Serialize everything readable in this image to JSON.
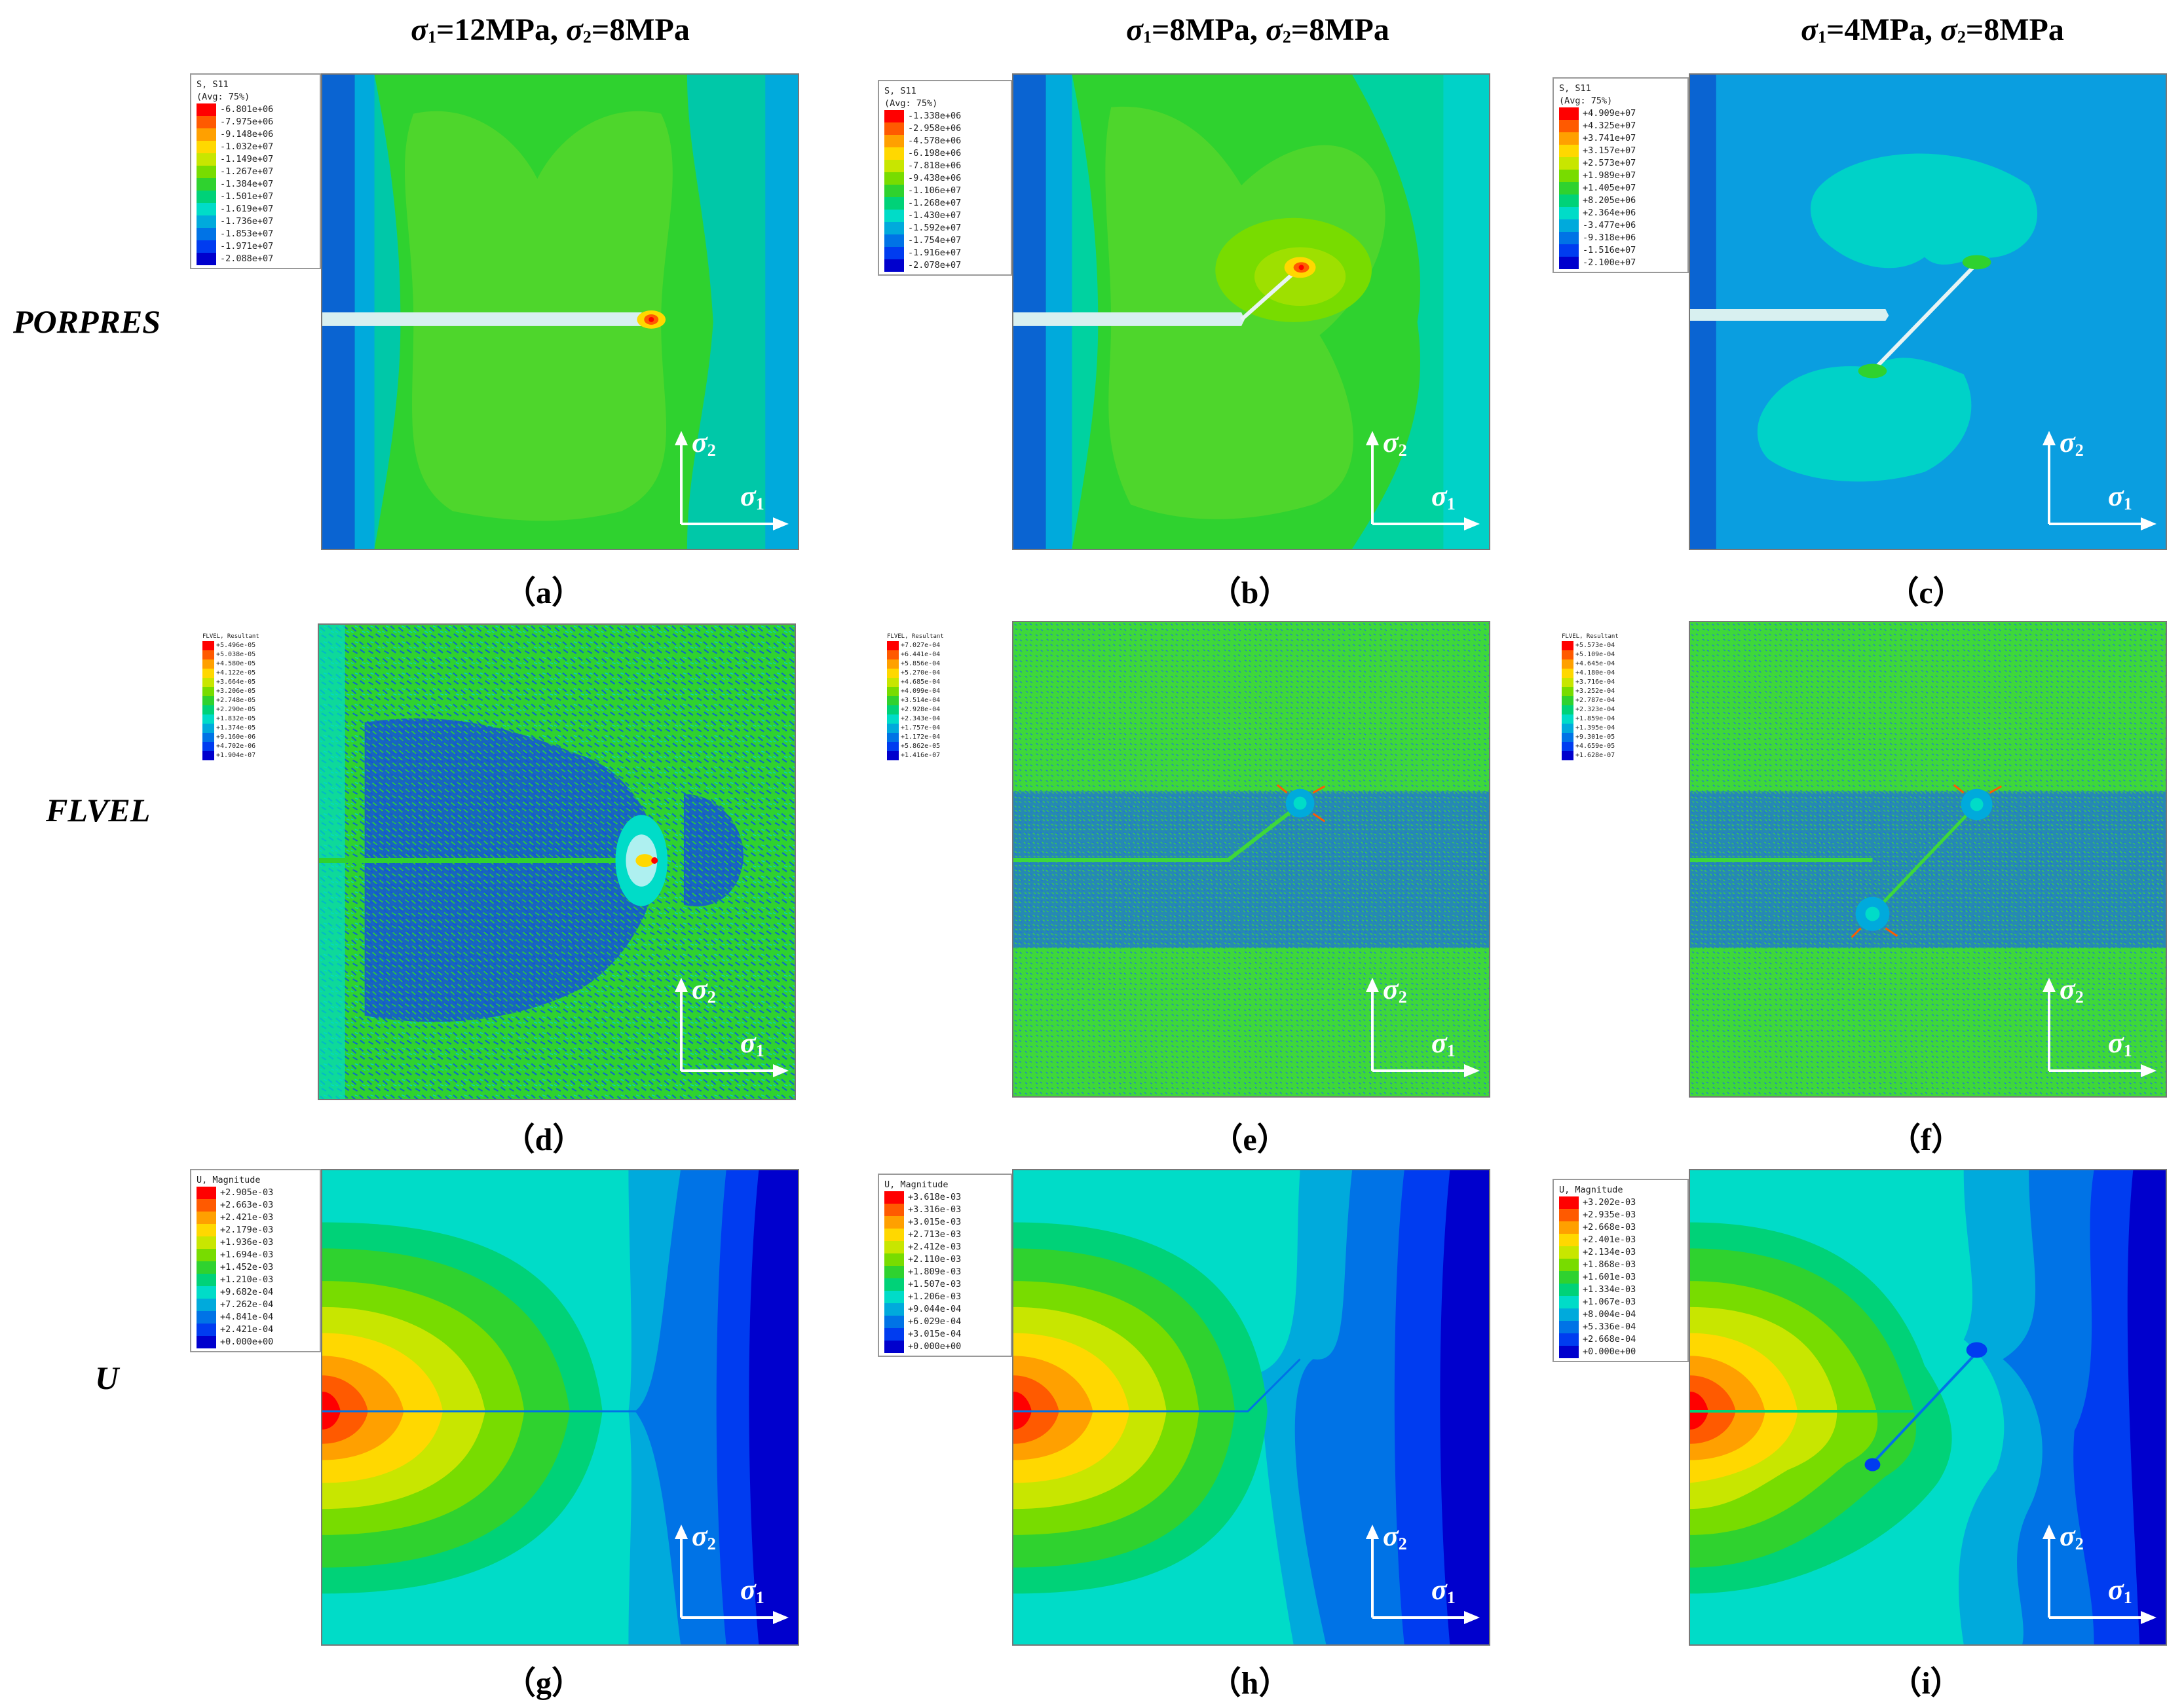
{
  "column_titles": [
    {
      "s1": "σ",
      "s1sub": "1",
      "s1val": "=12MPa, ",
      "s2": "σ",
      "s2sub": "2",
      "s2val": "=8MPa"
    },
    {
      "s1": "σ",
      "s1sub": "1",
      "s1val": "=8MPa, ",
      "s2": "σ",
      "s2sub": "2",
      "s2val": "=8MPa"
    },
    {
      "s1": "σ",
      "s1sub": "1",
      "s1val": "=4MPa, ",
      "s2": "σ",
      "s2sub": "2",
      "s2val": "=8MPa"
    }
  ],
  "row_labels": [
    "PORPRES",
    "FLVEL",
    "U"
  ],
  "axis": {
    "y_symbol": "σ",
    "y_sub": "2",
    "x_symbol": "σ",
    "x_sub": "1"
  },
  "captions": [
    "（a）",
    "（b）",
    "（c）",
    "（d）",
    "（e）",
    "（f）",
    "（g）",
    "（h）",
    "（i）"
  ],
  "legends": {
    "a": {
      "title1": "S, S11",
      "title2": "(Avg: 75%)",
      "values": [
        "-6.801e+06",
        "-7.975e+06",
        "-9.148e+06",
        "-1.032e+07",
        "-1.149e+07",
        "-1.267e+07",
        "-1.384e+07",
        "-1.501e+07",
        "-1.619e+07",
        "-1.736e+07",
        "-1.853e+07",
        "-1.971e+07",
        "-2.088e+07"
      ]
    },
    "b": {
      "title1": "S, S11",
      "title2": "(Avg: 75%)",
      "values": [
        "-1.338e+06",
        "-2.958e+06",
        "-4.578e+06",
        "-6.198e+06",
        "-7.818e+06",
        "-9.438e+06",
        "-1.106e+07",
        "-1.268e+07",
        "-1.430e+07",
        "-1.592e+07",
        "-1.754e+07",
        "-1.916e+07",
        "-2.078e+07"
      ]
    },
    "c": {
      "title1": "S, S11",
      "title2": "(Avg: 75%)",
      "values": [
        "+4.909e+07",
        "+4.325e+07",
        "+3.741e+07",
        "+3.157e+07",
        "+2.573e+07",
        "+1.989e+07",
        "+1.405e+07",
        "+8.205e+06",
        "+2.364e+06",
        "-3.477e+06",
        "-9.318e+06",
        "-1.516e+07",
        "-2.100e+07"
      ]
    },
    "d": {
      "title1": "FLVEL, Resultant",
      "values": [
        "+5.496e-05",
        "+5.038e-05",
        "+4.580e-05",
        "+4.122e-05",
        "+3.664e-05",
        "+3.206e-05",
        "+2.748e-05",
        "+2.290e-05",
        "+1.832e-05",
        "+1.374e-05",
        "+9.160e-06",
        "+4.702e-06",
        "+1.904e-07"
      ]
    },
    "e": {
      "title1": "FLVEL, Resultant",
      "values": [
        "+7.027e-04",
        "+6.441e-04",
        "+5.856e-04",
        "+5.270e-04",
        "+4.685e-04",
        "+4.099e-04",
        "+3.514e-04",
        "+2.928e-04",
        "+2.343e-04",
        "+1.757e-04",
        "+1.172e-04",
        "+5.862e-05",
        "+1.416e-07"
      ]
    },
    "f": {
      "title1": "FLVEL, Resultant",
      "values": [
        "+5.573e-04",
        "+5.109e-04",
        "+4.645e-04",
        "+4.180e-04",
        "+3.716e-04",
        "+3.252e-04",
        "+2.787e-04",
        "+2.323e-04",
        "+1.859e-04",
        "+1.395e-04",
        "+9.301e-05",
        "+4.659e-05",
        "+1.628e-07"
      ]
    },
    "g": {
      "title1": "U, Magnitude",
      "values": [
        "+2.905e-03",
        "+2.663e-03",
        "+2.421e-03",
        "+2.179e-03",
        "+1.936e-03",
        "+1.694e-03",
        "+1.452e-03",
        "+1.210e-03",
        "+9.682e-04",
        "+7.262e-04",
        "+4.841e-04",
        "+2.421e-04",
        "+0.000e+00"
      ]
    },
    "h": {
      "title1": "U, Magnitude",
      "values": [
        "+3.618e-03",
        "+3.316e-03",
        "+3.015e-03",
        "+2.713e-03",
        "+2.412e-03",
        "+2.110e-03",
        "+1.809e-03",
        "+1.507e-03",
        "+1.206e-03",
        "+9.044e-04",
        "+6.029e-04",
        "+3.015e-04",
        "+0.000e+00"
      ]
    },
    "i": {
      "title1": "U, Magnitude",
      "values": [
        "+3.202e-03",
        "+2.935e-03",
        "+2.668e-03",
        "+2.401e-03",
        "+2.134e-03",
        "+1.868e-03",
        "+1.601e-03",
        "+1.334e-03",
        "+1.067e-03",
        "+8.004e-04",
        "+5.336e-04",
        "+2.668e-04",
        "+0.000e+00"
      ]
    }
  },
  "colors": {
    "legend_scale": [
      "#ff0000",
      "#ff5a00",
      "#ffa000",
      "#ffd800",
      "#c8e600",
      "#78dc00",
      "#2fd22f",
      "#00d278",
      "#00dcc8",
      "#00aadc",
      "#0073e6",
      "#003cf0",
      "#0000cd"
    ],
    "frame": "#777777",
    "background": "#ffffff"
  }
}
